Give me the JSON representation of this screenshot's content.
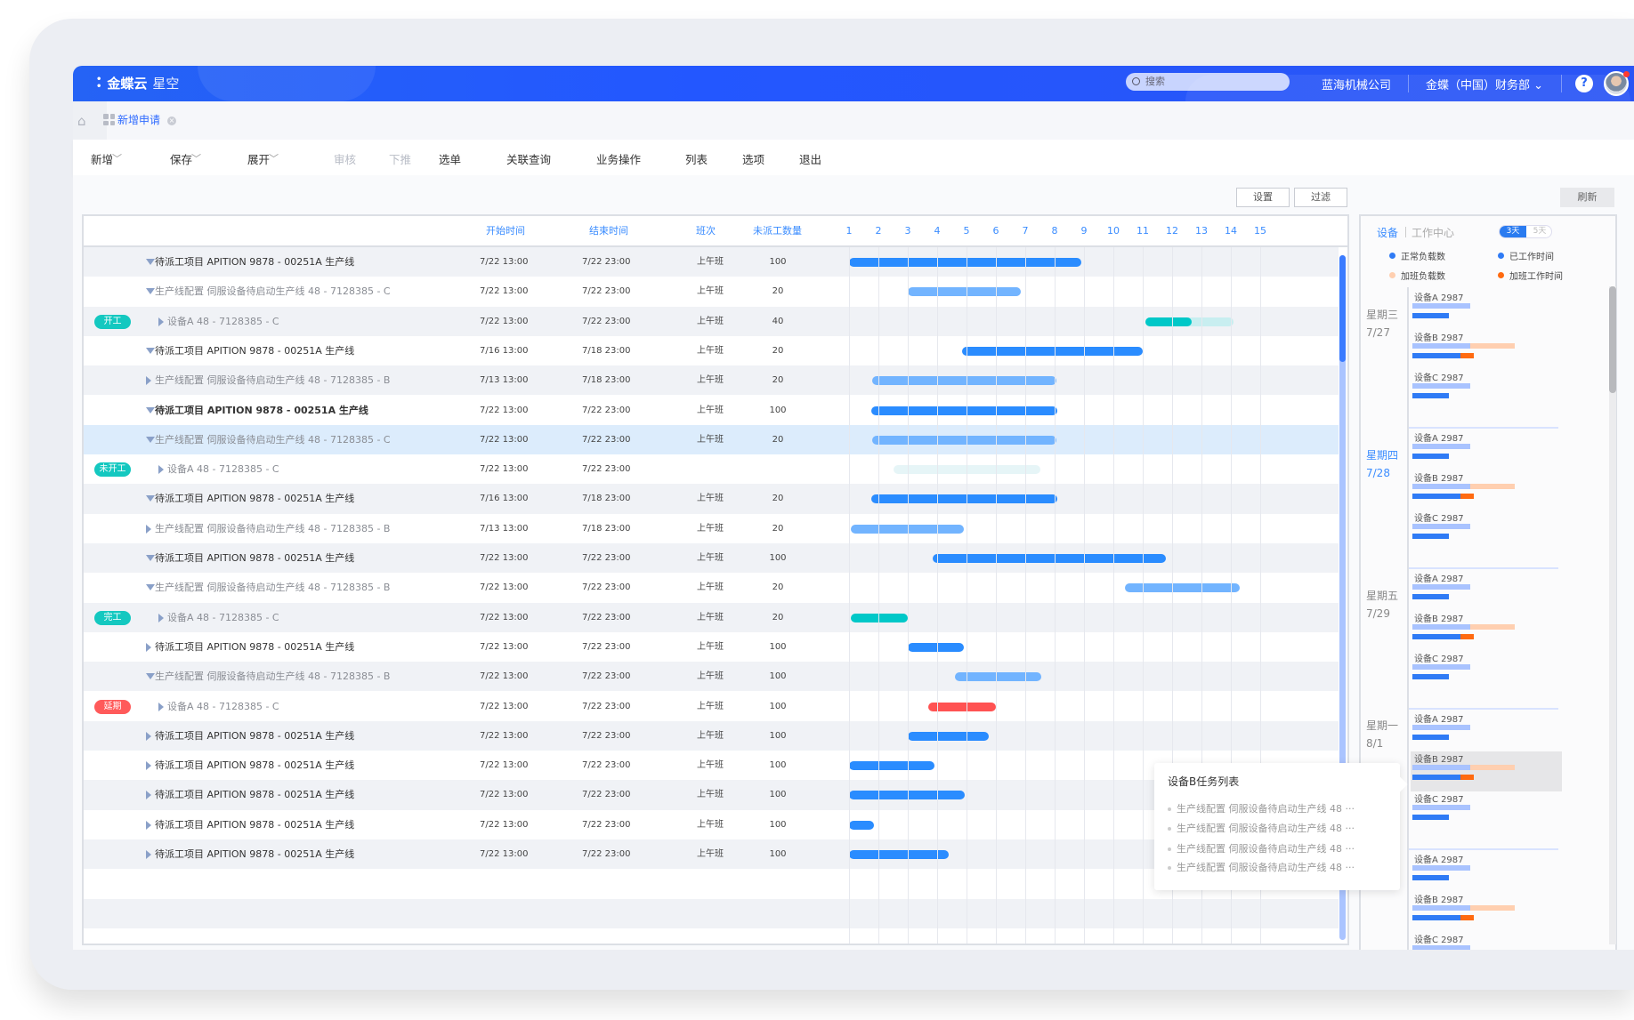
{
  "header": {
    "logo": "金蝶云",
    "logo_sub": "星空",
    "search_placeholder": "搜索",
    "company": "蓝海机械公司",
    "org": "金蝶（中国）财务部",
    "help": "?"
  },
  "tabs": [
    {
      "label": "新增申请",
      "active": true
    }
  ],
  "toolbar": {
    "items": [
      {
        "label": "新增",
        "dropdown": true,
        "disabled": false
      },
      {
        "label": "保存",
        "dropdown": true,
        "disabled": false
      },
      {
        "label": "展开",
        "dropdown": true,
        "disabled": false
      },
      {
        "label": "审核",
        "disabled": true
      },
      {
        "label": "下推",
        "disabled": true
      },
      {
        "label": "选单",
        "disabled": false
      },
      {
        "label": "关联查询",
        "disabled": false
      },
      {
        "label": "业务操作",
        "disabled": false
      },
      {
        "label": "列表",
        "disabled": false
      },
      {
        "label": "选项",
        "disabled": false
      },
      {
        "label": "退出",
        "disabled": false
      }
    ]
  },
  "actions": {
    "settings": "设置",
    "filter": "过滤",
    "refresh": "刷新"
  },
  "table": {
    "columns": {
      "start": "开始时间",
      "end": "结束时间",
      "shift": "班次",
      "pending": "未派工数量"
    },
    "days": [
      "1",
      "2",
      "3",
      "4",
      "5",
      "6",
      "7",
      "8",
      "9",
      "10",
      "11",
      "12",
      "13",
      "14",
      "15"
    ],
    "rows": [
      {
        "name": "待派工项目 APITION 9878 - 00251A 生产线",
        "level": 0,
        "caret": "down",
        "start": "7/22  13:00",
        "end": "7/22  23:00",
        "shift": "上午班",
        "pending": "100",
        "bar": {
          "start": 1,
          "end": 8.9,
          "kind": "main"
        }
      },
      {
        "name": "生产线配置 伺服设备待启动生产线 48 - 7128385 - C",
        "level": 1,
        "caret": "down",
        "start": "7/22  13:00",
        "end": "7/22  23:00",
        "shift": "上午班",
        "pending": "20",
        "bar": {
          "start": 3,
          "end": 6.85,
          "kind": "sub"
        }
      },
      {
        "name": "设备A 48 - 7128385 - C",
        "level": 2,
        "caret": "right",
        "badge": "开工",
        "start": "7/22  13:00",
        "end": "7/22  23:00",
        "shift": "上午班",
        "pending": "40",
        "bar": {
          "start": 11.1,
          "end": 14.1,
          "progress": 0.52,
          "kind": "started"
        }
      },
      {
        "name": "待派工项目 APITION 9878 - 00251A 生产线",
        "level": 0,
        "caret": "down",
        "start": "7/16  13:00",
        "end": "7/18  23:00",
        "shift": "上午班",
        "pending": "20",
        "bar": {
          "start": 4.85,
          "end": 11,
          "kind": "main"
        }
      },
      {
        "name": "生产线配置 伺服设备待启动生产线 48 - 7128385 - B",
        "level": 1,
        "caret": "right",
        "start": "7/13  13:00",
        "end": "7/18  23:00",
        "shift": "上午班",
        "pending": "20",
        "bar": {
          "start": 1.8,
          "end": 8.05,
          "kind": "sub"
        }
      },
      {
        "name": "待派工项目 APITION 9878 - 00251A 生产线",
        "level": 0,
        "caret": "down",
        "bold": true,
        "start": "7/22  13:00",
        "end": "7/22  23:00",
        "shift": "上午班",
        "pending": "100",
        "bar": {
          "start": 1.75,
          "end": 8.1,
          "kind": "main"
        }
      },
      {
        "name": "生产线配置 伺服设备待启动生产线 48 - 7128385 - C",
        "level": 1,
        "caret": "down",
        "selected": true,
        "start": "7/22  13:00",
        "end": "7/22  23:00",
        "shift": "上午班",
        "pending": "20",
        "bar": {
          "start": 1.8,
          "end": 8.05,
          "kind": "sub"
        }
      },
      {
        "name": "设备A 48 - 7128385 - C",
        "level": 2,
        "caret": "right",
        "badge": "未开工",
        "start": "7/22  13:00",
        "end": "7/22  23:00",
        "shift": "",
        "pending": "",
        "bar": {
          "start": 2.5,
          "end": 7.5,
          "kind": "notstarted"
        }
      },
      {
        "name": "待派工项目 APITION 9878 - 00251A 生产线",
        "level": 0,
        "caret": "down",
        "start": "7/16  13:00",
        "end": "7/18  23:00",
        "shift": "上午班",
        "pending": "20",
        "bar": {
          "start": 1.75,
          "end": 8.1,
          "kind": "main"
        }
      },
      {
        "name": "生产线配置 伺服设备待启动生产线 48 - 7128385 - B",
        "level": 1,
        "caret": "right",
        "start": "7/13  13:00",
        "end": "7/18  23:00",
        "shift": "上午班",
        "pending": "20",
        "bar": {
          "start": 1.05,
          "end": 4.9,
          "kind": "sub"
        }
      },
      {
        "name": "待派工项目 APITION 9878 - 00251A 生产线",
        "level": 0,
        "caret": "down",
        "start": "7/22  13:00",
        "end": "7/22  23:00",
        "shift": "上午班",
        "pending": "100",
        "bar": {
          "start": 3.85,
          "end": 11.8,
          "kind": "main"
        }
      },
      {
        "name": "生产线配置 伺服设备待启动生产线 48 - 7128385 - B",
        "level": 1,
        "caret": "down",
        "start": "7/22  13:00",
        "end": "7/22  23:00",
        "shift": "上午班",
        "pending": "20",
        "bar": {
          "start": 10.4,
          "end": 14.3,
          "kind": "sub"
        }
      },
      {
        "name": "设备A 48 - 7128385 - C",
        "level": 2,
        "caret": "right",
        "badge": "完工",
        "start": "7/22  13:00",
        "end": "7/22  23:00",
        "shift": "上午班",
        "pending": "20",
        "bar": {
          "start": 1.05,
          "end": 3,
          "kind": "done"
        }
      },
      {
        "name": "待派工项目 APITION 9878 - 00251A 生产线",
        "level": 0,
        "caret": "right",
        "start": "7/22  13:00",
        "end": "7/22  23:00",
        "shift": "上午班",
        "pending": "100",
        "bar": {
          "start": 3,
          "end": 4.9,
          "kind": "main"
        }
      },
      {
        "name": "生产线配置 伺服设备待启动生产线 48 - 7128385 - B",
        "level": 1,
        "caret": "down",
        "start": "7/22  13:00",
        "end": "7/22  23:00",
        "shift": "上午班",
        "pending": "100",
        "bar": {
          "start": 4.6,
          "end": 7.55,
          "kind": "sub"
        }
      },
      {
        "name": "设备A 48 - 7128385 - C",
        "level": 2,
        "caret": "right",
        "badge": "延期",
        "start": "7/22  13:00",
        "end": "7/22  23:00",
        "shift": "上午班",
        "pending": "100",
        "bar": {
          "start": 3.7,
          "end": 6,
          "kind": "delayed"
        }
      },
      {
        "name": "待派工项目 APITION 9878 - 00251A 生产线",
        "level": 0,
        "caret": "right",
        "start": "7/22  13:00",
        "end": "7/22  23:00",
        "shift": "上午班",
        "pending": "100",
        "bar": {
          "start": 3,
          "end": 5.75,
          "kind": "main"
        }
      },
      {
        "name": "待派工项目 APITION 9878 - 00251A 生产线",
        "level": 0,
        "caret": "right",
        "start": "7/22  13:00",
        "end": "7/22  23:00",
        "shift": "上午班",
        "pending": "100",
        "bar": {
          "start": 1,
          "end": 3.9,
          "kind": "main"
        }
      },
      {
        "name": "待派工项目 APITION 9878 - 00251A 生产线",
        "level": 0,
        "caret": "right",
        "start": "7/22  13:00",
        "end": "7/22  23:00",
        "shift": "上午班",
        "pending": "100",
        "bar": {
          "start": 1,
          "end": 4.95,
          "kind": "main"
        }
      },
      {
        "name": "待派工项目 APITION 9878 - 00251A 生产线",
        "level": 0,
        "caret": "right",
        "start": "7/22  13:00",
        "end": "7/22  23:00",
        "shift": "上午班",
        "pending": "100",
        "bar": {
          "start": 1,
          "end": 1.85,
          "kind": "main"
        }
      },
      {
        "name": "待派工项目 APITION 9878 - 00251A 生产线",
        "level": 0,
        "caret": "right",
        "start": "7/22  13:00",
        "end": "7/22  23:00",
        "shift": "上午班",
        "pending": "100",
        "bar": {
          "start": 1,
          "end": 4.4,
          "kind": "main"
        }
      }
    ]
  },
  "colors": {
    "main": "#2a8cff",
    "sub": "#72b4ff",
    "started": "#00c8c8",
    "started_rest": "#c8eef0",
    "notstarted": "#e6f5f7",
    "done": "#00c8c8",
    "delayed": "#ff5252",
    "badge_started": "#14c8c0",
    "badge_notstarted": "#14c8c0",
    "badge_done": "#14c8c0",
    "badge_delayed": "#ff5a5a",
    "normal_load": "#a9c3ff",
    "work_time": "#2f7bf5",
    "overtime_load": "#ffcfb0",
    "overtime_work": "#ff6a10"
  },
  "panel": {
    "tabs": [
      "设备",
      "工作中心"
    ],
    "range_options": [
      "3天",
      "5天"
    ],
    "range_selected": "3天",
    "legend": [
      "正常负载数",
      "已工作时间",
      "加班负载数",
      "加班工作时间"
    ],
    "groups": [
      {
        "weekday": "星期三",
        "date": "7/27",
        "active": false
      },
      {
        "weekday": "星期四",
        "date": "7/28",
        "active": true
      },
      {
        "weekday": "星期五",
        "date": "7/29",
        "active": false
      },
      {
        "weekday": "星期一",
        "date": "8/1",
        "active": false,
        "highlight": 1
      },
      {
        "weekday": "",
        "date": "",
        "active": false
      }
    ],
    "equipment": [
      {
        "name": "设备A 2987",
        "normal_load": 1,
        "work": 0.63,
        "overtime_load": 0,
        "overtime_work": 0
      },
      {
        "name": "设备B 2987",
        "normal_load": 1,
        "work": 0.83,
        "overtime_load": 0.77,
        "overtime_work": 0.23
      },
      {
        "name": "设备C 2987",
        "normal_load": 1,
        "work": 0.63,
        "overtime_load": 0,
        "overtime_work": 0
      }
    ]
  },
  "tooltip": {
    "title": "设备B任务列表",
    "items": [
      "生产线配置 伺服设备待启动生产线 48 ···",
      "生产线配置 伺服设备待启动生产线 48 ···",
      "生产线配置 伺服设备待启动生产线 48 ···",
      "生产线配置 伺服设备待启动生产线 48 ···"
    ]
  }
}
